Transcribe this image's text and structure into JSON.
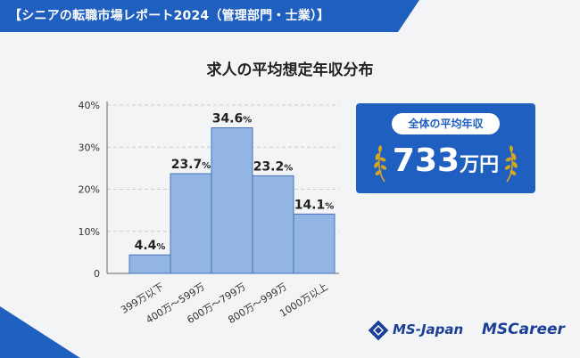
{
  "banner": {
    "text": "【シニアの転職市場レポート2024（管理部門・士業）】",
    "color": "#1f5fbf"
  },
  "chart_data": {
    "type": "bar",
    "title": "求人の平均想定年収分布",
    "categories": [
      "399万以下",
      "400万～599万",
      "600万～799万",
      "800万～999万",
      "1000万以上"
    ],
    "values": [
      4.4,
      23.7,
      34.6,
      23.2,
      14.1
    ],
    "value_labels": [
      "4.4%",
      "23.7%",
      "34.6%",
      "23.2%",
      "14.1%"
    ],
    "yticks": [
      0,
      10,
      20,
      30,
      40
    ],
    "ytick_labels": [
      "0",
      "10%",
      "20%",
      "30%",
      "40%"
    ],
    "ylim": [
      0,
      40
    ],
    "xlabel": "",
    "ylabel": "",
    "grid": true,
    "bar_color": "#92b5e3",
    "bar_edge_color": "#4a74b8"
  },
  "average": {
    "label": "全体の平均年収",
    "value": "733",
    "unit": "万円",
    "gold_color": "#d6a520"
  },
  "logos": {
    "ms_japan": "MS-Japan",
    "ms_career": "MSCareer",
    "brand_color": "#1a3f95"
  }
}
